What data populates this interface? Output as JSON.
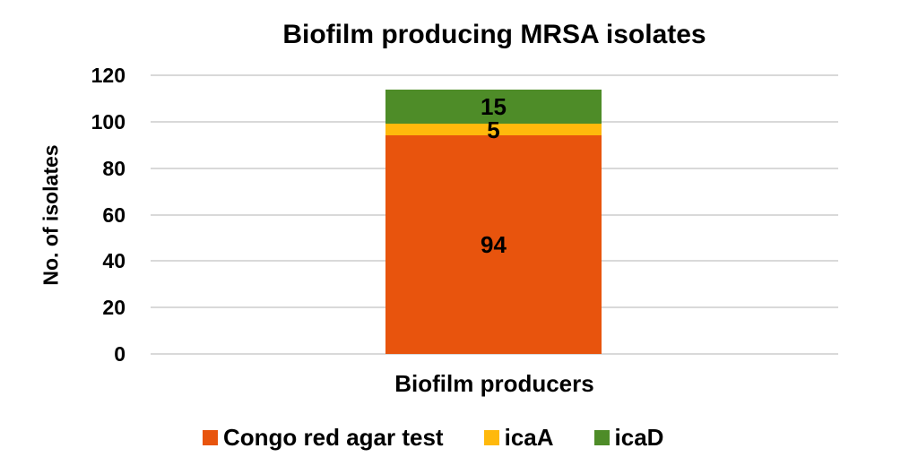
{
  "chart_data": {
    "type": "bar",
    "stacked": true,
    "title": "Biofilm producing MRSA isolates",
    "ylabel": "No. of isolates",
    "xlabel": "",
    "categories": [
      "Biofilm producers"
    ],
    "series": [
      {
        "name": "Congo red agar test",
        "color": "#E8540D",
        "values": [
          94
        ]
      },
      {
        "name": "icaA",
        "color": "#FFB90C",
        "values": [
          5
        ]
      },
      {
        "name": "icaD",
        "color": "#4E8C28",
        "values": [
          15
        ]
      }
    ],
    "ylim": [
      0,
      120
    ],
    "yticks": [
      0,
      20,
      40,
      60,
      80,
      100,
      120
    ],
    "grid": "horizontal",
    "gridline_color": "#D9D9D9",
    "legend_position": "bottom",
    "text_color": "#000000",
    "background": "#FFFFFF"
  }
}
